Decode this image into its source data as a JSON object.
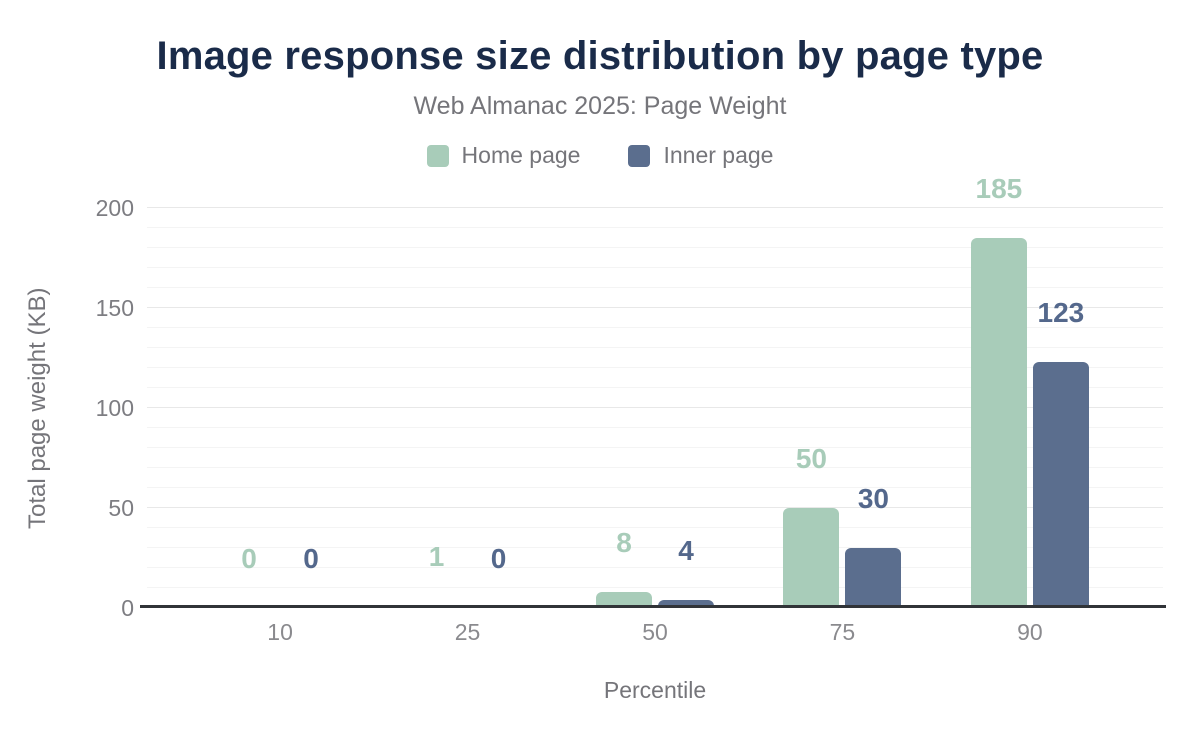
{
  "header": {
    "title": "Image response size distribution by page type",
    "subtitle": "Web Almanac 2025: Page Weight"
  },
  "chart_data": {
    "type": "bar",
    "title": "Image response size distribution by page type",
    "subtitle": "Web Almanac 2025: Page Weight",
    "categories": [
      "10",
      "25",
      "50",
      "75",
      "90"
    ],
    "series": [
      {
        "name": "Home page",
        "color": "#a8ccb9",
        "label_color": "#a8ccb9",
        "values": [
          0,
          1,
          8,
          50,
          185
        ]
      },
      {
        "name": "Inner page",
        "color": "#5b6e8e",
        "label_color": "#54688c",
        "values": [
          0,
          0,
          4,
          30,
          123
        ]
      }
    ],
    "xlabel": "Percentile",
    "ylabel": "Total page weight (KB)",
    "ylim": [
      0,
      200
    ],
    "yticks": [
      0,
      50,
      100,
      150,
      200
    ],
    "minor_grid_step": 10,
    "major_grid_step": 50,
    "grid": true,
    "legend_position": "top",
    "colors": {
      "title": "#1a2b49",
      "subtitle_text": "#75757a",
      "tick_text": "#7d7d82",
      "axis_line": "#313438",
      "gridline_minor": "#f4f4f4",
      "gridline_major": "#e8e8e8",
      "background": "#ffffff"
    }
  }
}
